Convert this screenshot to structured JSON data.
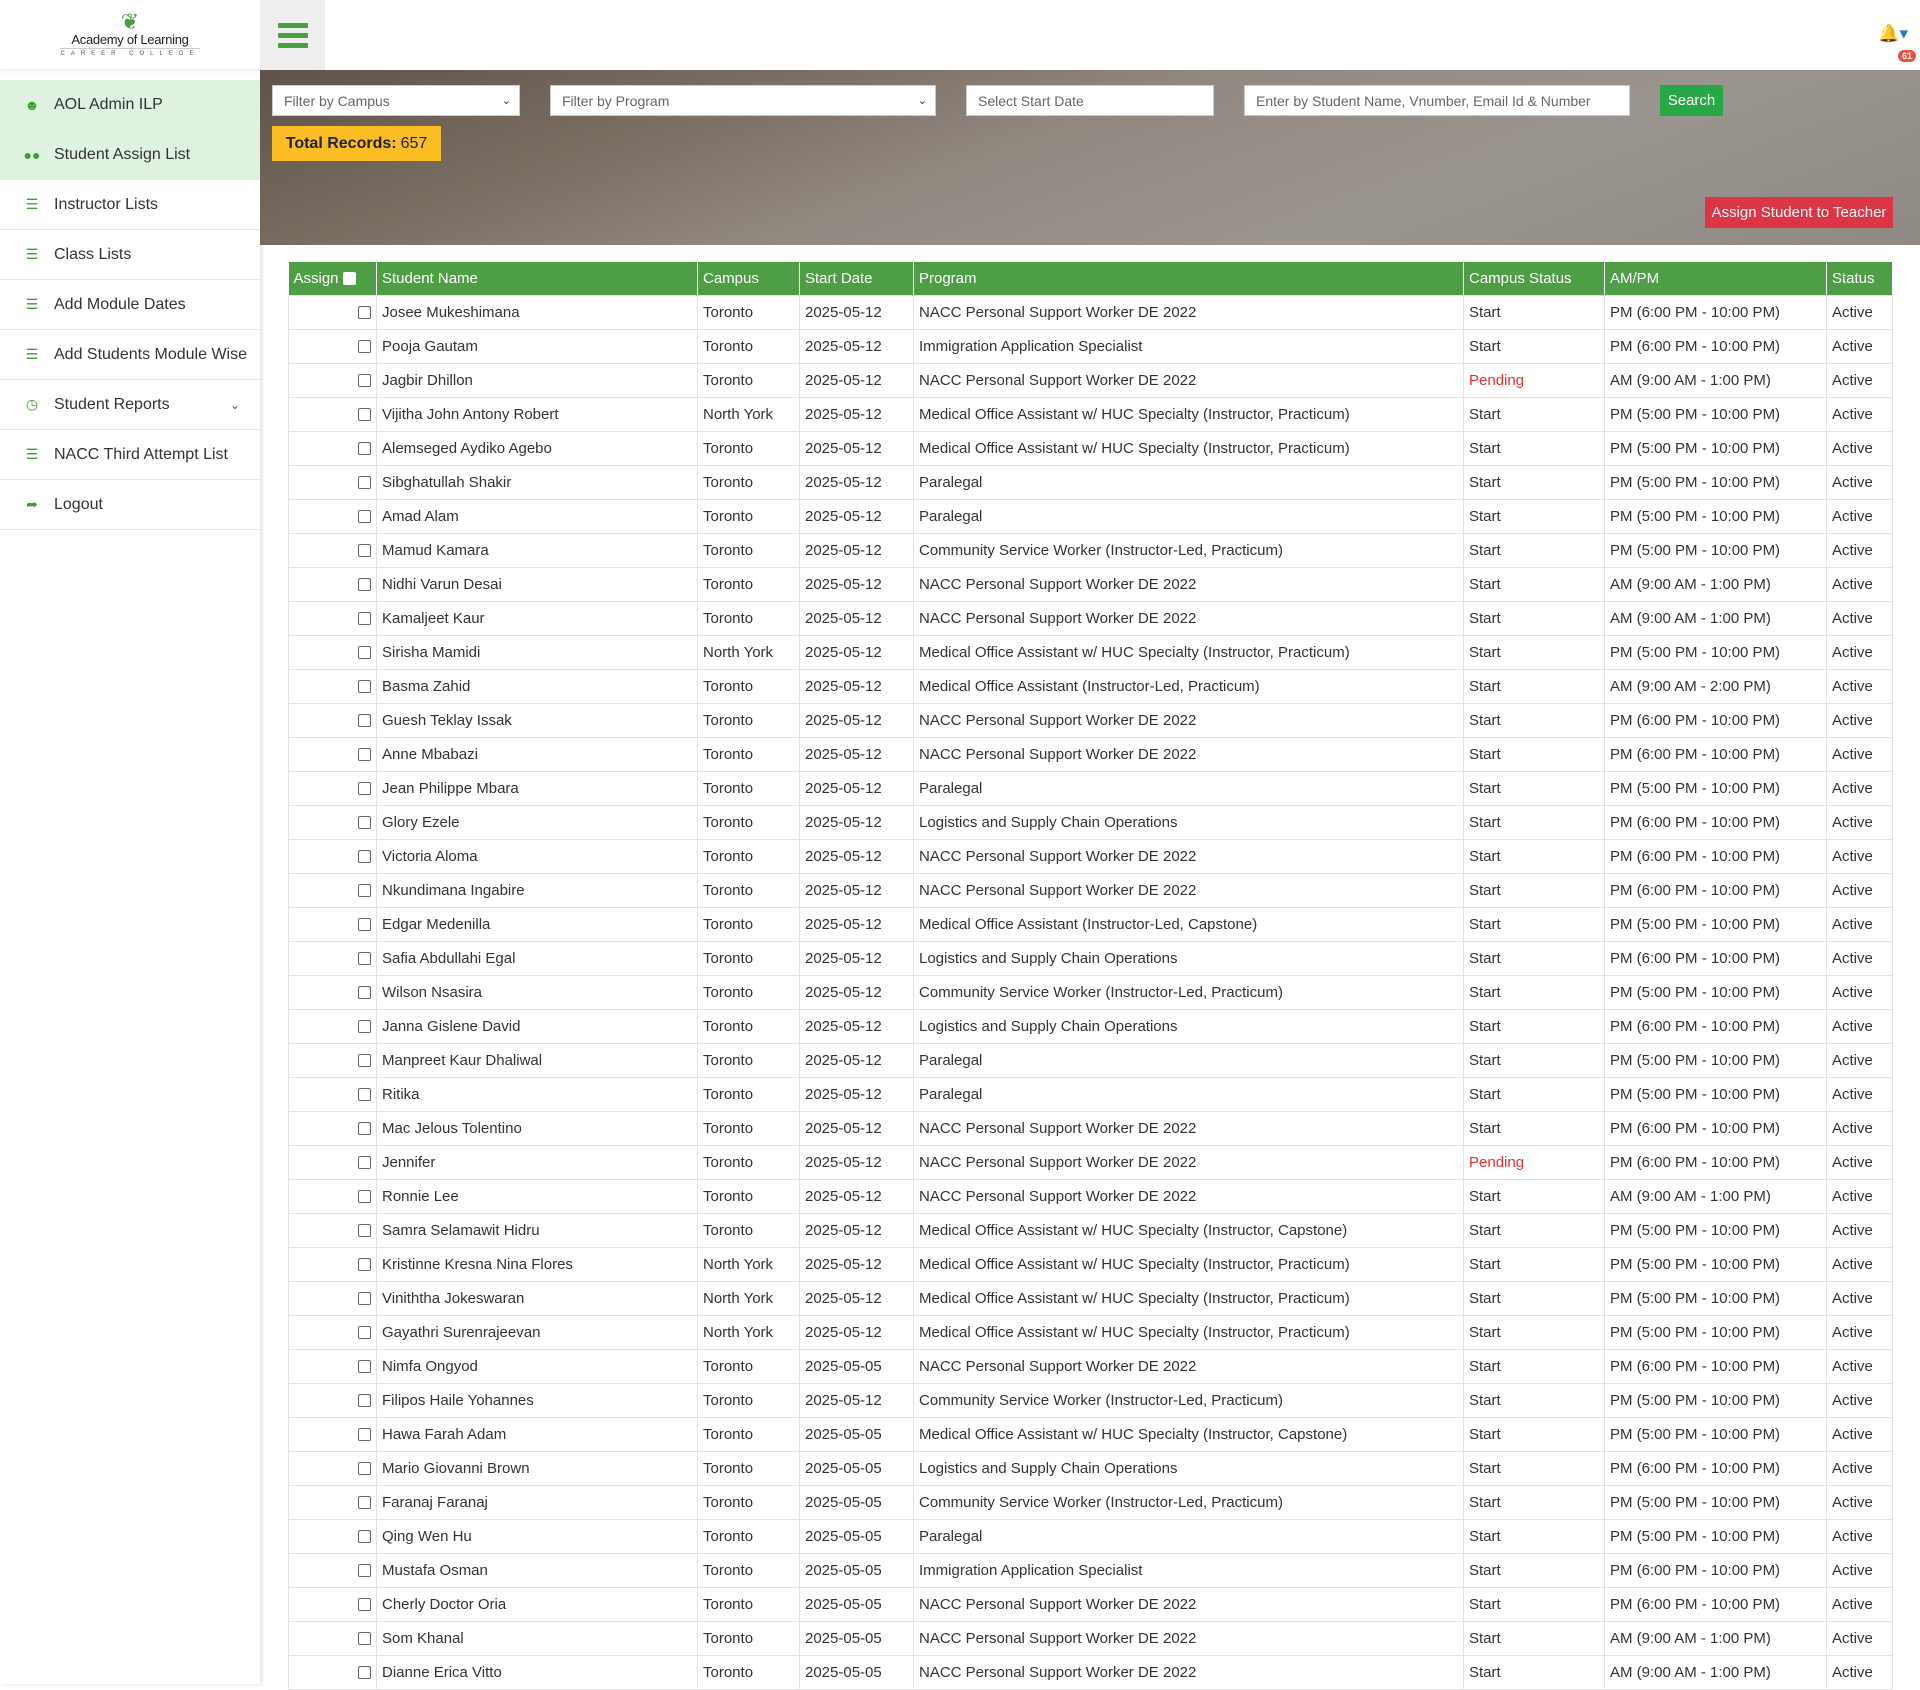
{
  "logo": {
    "line1": "Academy of Learning",
    "line2": "CAREER COLLEGE"
  },
  "sidebar": {
    "items": [
      {
        "label": "AOL Admin ILP",
        "icon": "user-icon",
        "active": true
      },
      {
        "label": "Student Assign List",
        "icon": "users-icon",
        "active": true
      },
      {
        "label": "Instructor Lists",
        "icon": "list-icon"
      },
      {
        "label": "Class Lists",
        "icon": "list-icon"
      },
      {
        "label": "Add Module Dates",
        "icon": "list-icon"
      },
      {
        "label": "Add Students Module Wise",
        "icon": "list-icon"
      },
      {
        "label": "Student Reports",
        "icon": "clock-icon",
        "has_submenu": true
      },
      {
        "label": "NACC Third Attempt List",
        "icon": "list-icon"
      },
      {
        "label": "Logout",
        "icon": "logout-icon"
      }
    ]
  },
  "header": {
    "notification_count": "61"
  },
  "filters": {
    "campus_placeholder": "Filter by Campus",
    "program_placeholder": "Filter by Program",
    "date_placeholder": "Select Start Date",
    "search_placeholder": "Enter by Student Name, Vnumber, Email Id & Number",
    "search_label": "Search"
  },
  "total": {
    "label": "Total Records:",
    "value": "657"
  },
  "assign_button": "Assign Student to Teacher",
  "colors": {
    "accent": "#4d9e45",
    "pending": "#e8312f",
    "assign": "#dc3545",
    "total": "#fbbd24"
  },
  "table": {
    "headers": [
      "Assign",
      "Student Name",
      "Campus",
      "Start Date",
      "Program",
      "Campus Status",
      "AM/PM",
      "Status"
    ],
    "rows": [
      [
        "Josee Mukeshimana",
        "Toronto",
        "2025-05-12",
        "NACC Personal Support Worker DE 2022",
        "Start",
        "PM (6:00 PM - 10:00 PM)",
        "Active"
      ],
      [
        "Pooja Gautam",
        "Toronto",
        "2025-05-12",
        "Immigration Application Specialist",
        "Start",
        "PM (6:00 PM - 10:00 PM)",
        "Active"
      ],
      [
        "Jagbir Dhillon",
        "Toronto",
        "2025-05-12",
        "NACC Personal Support Worker DE 2022",
        "Pending",
        "AM (9:00 AM - 1:00 PM)",
        "Active"
      ],
      [
        "Vijitha John Antony Robert",
        "North York",
        "2025-05-12",
        "Medical Office Assistant w/ HUC Specialty (Instructor, Practicum)",
        "Start",
        "PM (5:00 PM - 10:00 PM)",
        "Active"
      ],
      [
        "Alemseged Aydiko Agebo",
        "Toronto",
        "2025-05-12",
        "Medical Office Assistant w/ HUC Specialty (Instructor, Practicum)",
        "Start",
        "PM (5:00 PM - 10:00 PM)",
        "Active"
      ],
      [
        "Sibghatullah Shakir",
        "Toronto",
        "2025-05-12",
        "Paralegal",
        "Start",
        "PM (5:00 PM - 10:00 PM)",
        "Active"
      ],
      [
        "Amad Alam",
        "Toronto",
        "2025-05-12",
        "Paralegal",
        "Start",
        "PM (5:00 PM - 10:00 PM)",
        "Active"
      ],
      [
        "Mamud Kamara",
        "Toronto",
        "2025-05-12",
        "Community Service Worker (Instructor-Led, Practicum)",
        "Start",
        "PM (5:00 PM - 10:00 PM)",
        "Active"
      ],
      [
        "Nidhi Varun Desai",
        "Toronto",
        "2025-05-12",
        "NACC Personal Support Worker DE 2022",
        "Start",
        "AM (9:00 AM - 1:00 PM)",
        "Active"
      ],
      [
        "Kamaljeet Kaur",
        "Toronto",
        "2025-05-12",
        "NACC Personal Support Worker DE 2022",
        "Start",
        "AM (9:00 AM - 1:00 PM)",
        "Active"
      ],
      [
        "Sirisha Mamidi",
        "North York",
        "2025-05-12",
        "Medical Office Assistant w/ HUC Specialty (Instructor, Practicum)",
        "Start",
        "PM (5:00 PM - 10:00 PM)",
        "Active"
      ],
      [
        "Basma Zahid",
        "Toronto",
        "2025-05-12",
        "Medical Office Assistant (Instructor-Led, Practicum)",
        "Start",
        "AM (9:00 AM - 2:00 PM)",
        "Active"
      ],
      [
        "Guesh Teklay Issak",
        "Toronto",
        "2025-05-12",
        "NACC Personal Support Worker DE 2022",
        "Start",
        "PM (6:00 PM - 10:00 PM)",
        "Active"
      ],
      [
        "Anne Mbabazi",
        "Toronto",
        "2025-05-12",
        "NACC Personal Support Worker DE 2022",
        "Start",
        "PM (6:00 PM - 10:00 PM)",
        "Active"
      ],
      [
        "Jean Philippe Mbara",
        "Toronto",
        "2025-05-12",
        "Paralegal",
        "Start",
        "PM (5:00 PM - 10:00 PM)",
        "Active"
      ],
      [
        "Glory Ezele",
        "Toronto",
        "2025-05-12",
        "Logistics and Supply Chain Operations",
        "Start",
        "PM (6:00 PM - 10:00 PM)",
        "Active"
      ],
      [
        "Victoria Aloma",
        "Toronto",
        "2025-05-12",
        "NACC Personal Support Worker DE 2022",
        "Start",
        "PM (6:00 PM - 10:00 PM)",
        "Active"
      ],
      [
        "Nkundimana Ingabire",
        "Toronto",
        "2025-05-12",
        "NACC Personal Support Worker DE 2022",
        "Start",
        "PM (6:00 PM - 10:00 PM)",
        "Active"
      ],
      [
        "Edgar Medenilla",
        "Toronto",
        "2025-05-12",
        "Medical Office Assistant (Instructor-Led, Capstone)",
        "Start",
        "PM (5:00 PM - 10:00 PM)",
        "Active"
      ],
      [
        "Safia Abdullahi Egal",
        "Toronto",
        "2025-05-12",
        "Logistics and Supply Chain Operations",
        "Start",
        "PM (6:00 PM - 10:00 PM)",
        "Active"
      ],
      [
        "Wilson Nsasira",
        "Toronto",
        "2025-05-12",
        "Community Service Worker (Instructor-Led, Practicum)",
        "Start",
        "PM (5:00 PM - 10:00 PM)",
        "Active"
      ],
      [
        "Janna Gislene David",
        "Toronto",
        "2025-05-12",
        "Logistics and Supply Chain Operations",
        "Start",
        "PM (6:00 PM - 10:00 PM)",
        "Active"
      ],
      [
        "Manpreet Kaur Dhaliwal",
        "Toronto",
        "2025-05-12",
        "Paralegal",
        "Start",
        "PM (5:00 PM - 10:00 PM)",
        "Active"
      ],
      [
        "Ritika",
        "Toronto",
        "2025-05-12",
        "Paralegal",
        "Start",
        "PM (5:00 PM - 10:00 PM)",
        "Active"
      ],
      [
        "Mac Jelous Tolentino",
        "Toronto",
        "2025-05-12",
        "NACC Personal Support Worker DE 2022",
        "Start",
        "PM (6:00 PM - 10:00 PM)",
        "Active"
      ],
      [
        "Jennifer",
        "Toronto",
        "2025-05-12",
        "NACC Personal Support Worker DE 2022",
        "Pending",
        "PM (6:00 PM - 10:00 PM)",
        "Active"
      ],
      [
        "Ronnie Lee",
        "Toronto",
        "2025-05-12",
        "NACC Personal Support Worker DE 2022",
        "Start",
        "AM (9:00 AM - 1:00 PM)",
        "Active"
      ],
      [
        "Samra Selamawit Hidru",
        "Toronto",
        "2025-05-12",
        "Medical Office Assistant w/ HUC Specialty (Instructor, Capstone)",
        "Start",
        "PM (5:00 PM - 10:00 PM)",
        "Active"
      ],
      [
        "Kristinne Kresna Nina Flores",
        "North York",
        "2025-05-12",
        "Medical Office Assistant w/ HUC Specialty (Instructor, Practicum)",
        "Start",
        "PM (5:00 PM - 10:00 PM)",
        "Active"
      ],
      [
        "Viniththa Jokeswaran",
        "North York",
        "2025-05-12",
        "Medical Office Assistant w/ HUC Specialty (Instructor, Practicum)",
        "Start",
        "PM (5:00 PM - 10:00 PM)",
        "Active"
      ],
      [
        "Gayathri Surenrajeevan",
        "North York",
        "2025-05-12",
        "Medical Office Assistant w/ HUC Specialty (Instructor, Practicum)",
        "Start",
        "PM (5:00 PM - 10:00 PM)",
        "Active"
      ],
      [
        "Nimfa Ongyod",
        "Toronto",
        "2025-05-05",
        "NACC Personal Support Worker DE 2022",
        "Start",
        "PM (6:00 PM - 10:00 PM)",
        "Active"
      ],
      [
        "Filipos Haile Yohannes",
        "Toronto",
        "2025-05-12",
        "Community Service Worker (Instructor-Led, Practicum)",
        "Start",
        "PM (5:00 PM - 10:00 PM)",
        "Active"
      ],
      [
        "Hawa Farah Adam",
        "Toronto",
        "2025-05-05",
        "Medical Office Assistant w/ HUC Specialty (Instructor, Capstone)",
        "Start",
        "PM (5:00 PM - 10:00 PM)",
        "Active"
      ],
      [
        "Mario Giovanni Brown",
        "Toronto",
        "2025-05-05",
        "Logistics and Supply Chain Operations",
        "Start",
        "PM (6:00 PM - 10:00 PM)",
        "Active"
      ],
      [
        "Faranaj Faranaj",
        "Toronto",
        "2025-05-05",
        "Community Service Worker (Instructor-Led, Practicum)",
        "Start",
        "PM (5:00 PM - 10:00 PM)",
        "Active"
      ],
      [
        "Qing Wen Hu",
        "Toronto",
        "2025-05-05",
        "Paralegal",
        "Start",
        "PM (5:00 PM - 10:00 PM)",
        "Active"
      ],
      [
        "Mustafa Osman",
        "Toronto",
        "2025-05-05",
        "Immigration Application Specialist",
        "Start",
        "PM (6:00 PM - 10:00 PM)",
        "Active"
      ],
      [
        "Cherly Doctor Oria",
        "Toronto",
        "2025-05-05",
        "NACC Personal Support Worker DE 2022",
        "Start",
        "PM (6:00 PM - 10:00 PM)",
        "Active"
      ],
      [
        "Som Khanal",
        "Toronto",
        "2025-05-05",
        "NACC Personal Support Worker DE 2022",
        "Start",
        "AM (9:00 AM - 1:00 PM)",
        "Active"
      ],
      [
        "Dianne Erica Vitto",
        "Toronto",
        "2025-05-05",
        "NACC Personal Support Worker DE 2022",
        "Start",
        "AM (9:00 AM - 1:00 PM)",
        "Active"
      ]
    ]
  }
}
